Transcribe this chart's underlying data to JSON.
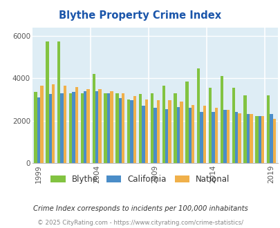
{
  "title": "Blythe Property Crime Index",
  "years": [
    1999,
    2000,
    2001,
    2002,
    2003,
    2004,
    2005,
    2006,
    2007,
    2008,
    2009,
    2010,
    2011,
    2012,
    2013,
    2014,
    2015,
    2016,
    2017,
    2018,
    2019
  ],
  "blythe": [
    3350,
    5750,
    5750,
    3300,
    3300,
    4200,
    3300,
    3300,
    3000,
    3250,
    3300,
    3650,
    3300,
    3850,
    4450,
    3550,
    4100,
    3550,
    3200,
    2200,
    3200
  ],
  "california": [
    3100,
    3250,
    3300,
    3350,
    3400,
    3400,
    3300,
    3050,
    2950,
    2700,
    2600,
    2550,
    2650,
    2600,
    2400,
    2400,
    2500,
    2400,
    2300,
    2200,
    2300
  ],
  "national": [
    3650,
    3700,
    3650,
    3600,
    3500,
    3500,
    3400,
    3300,
    3150,
    3000,
    2950,
    2950,
    2900,
    2750,
    2700,
    2600,
    2500,
    2350,
    2300,
    2200,
    2100
  ],
  "blythe_color": "#82c341",
  "california_color": "#4a8dc8",
  "national_color": "#f0b04a",
  "plot_bg": "#deedf5",
  "subtitle": "Crime Index corresponds to incidents per 100,000 inhabitants",
  "footer": "© 2025 CityRating.com - https://www.cityrating.com/crime-statistics/",
  "tick_years": [
    1999,
    2004,
    2009,
    2014,
    2019
  ]
}
